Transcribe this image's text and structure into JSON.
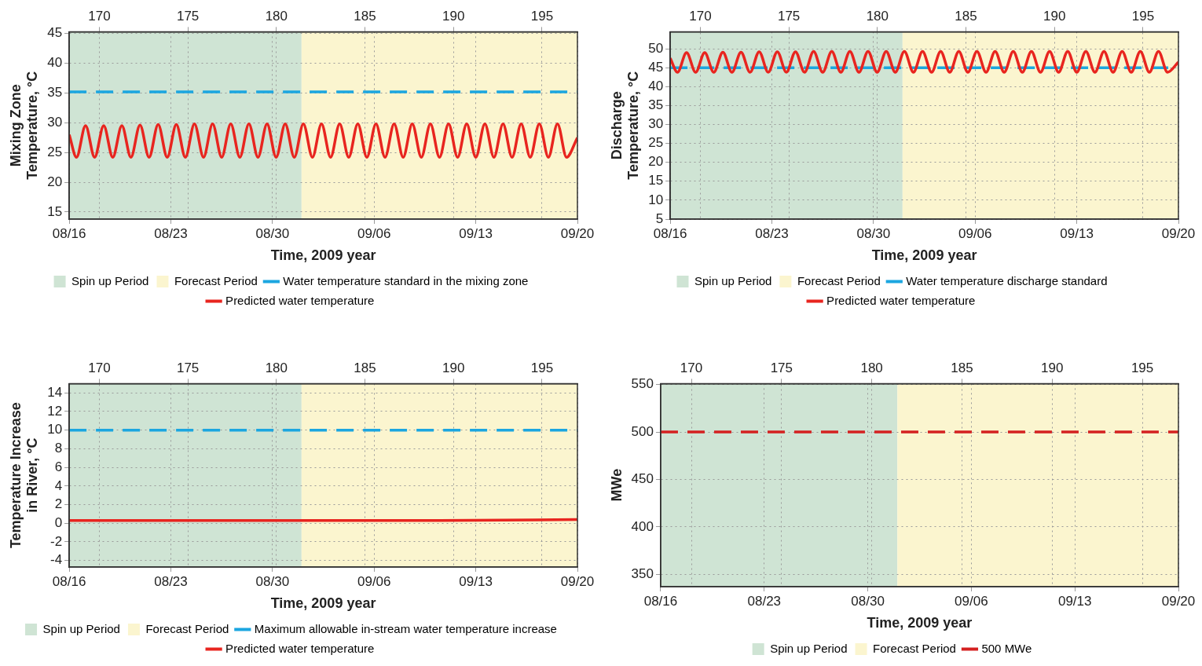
{
  "chart_data": [
    {
      "type": "line",
      "xlabel": "Time, 2009 year",
      "ylabel": "Mixing Zone Temperature, °C",
      "x": [
        "2009-08-16T00:00",
        "2009-08-16T12:00",
        "2009-08-17T03:00",
        "2009-08-17T18:00",
        "2009-08-18T09:00",
        "2009-08-19T00:00",
        "2009-08-19T15:00",
        "2009-08-20T06:00",
        "2009-08-20T21:00",
        "2009-08-21T12:00",
        "2009-08-22T03:00",
        "2009-08-22T18:00",
        "2009-08-23T09:00",
        "2009-08-24T00:00",
        "2009-08-24T15:00",
        "2009-08-25T06:00",
        "2009-08-25T21:00",
        "2009-08-26T12:00",
        "2009-08-27T03:00",
        "2009-08-27T18:00",
        "2009-08-28T09:00",
        "2009-08-29T00:00",
        "2009-08-29T15:00",
        "2009-08-30T06:00",
        "2009-08-30T21:00",
        "2009-08-31T12:00",
        "2009-09-01T03:00",
        "2009-09-01T18:00",
        "2009-09-02T09:00",
        "2009-09-03T00:00",
        "2009-09-03T15:00",
        "2009-09-04T06:00",
        "2009-09-04T21:00",
        "2009-09-05T12:00",
        "2009-09-06T03:00",
        "2009-09-06T18:00",
        "2009-09-07T09:00",
        "2009-09-08T00:00",
        "2009-09-08T15:00",
        "2009-09-09T06:00",
        "2009-09-09T21:00",
        "2009-09-10T12:00",
        "2009-09-11T03:00",
        "2009-09-11T18:00",
        "2009-09-12T09:00",
        "2009-09-13T00:00",
        "2009-09-13T15:00",
        "2009-09-14T06:00",
        "2009-09-14T21:00",
        "2009-09-15T12:00",
        "2009-09-16T03:00",
        "2009-09-16T18:00",
        "2009-09-17T09:00",
        "2009-09-18T00:00",
        "2009-09-18T15:00",
        "2009-09-19T06:00",
        "2009-09-20T00:00"
      ],
      "xlim": [
        "2009-08-16",
        "2009-09-20"
      ],
      "xticks": [
        {
          "value": "2009-08-16",
          "label": "08/16"
        },
        {
          "value": "2009-08-23",
          "label": "08/23"
        },
        {
          "value": "2009-08-30",
          "label": "08/30"
        },
        {
          "value": "2009-09-06",
          "label": "09/06"
        },
        {
          "value": "2009-09-13",
          "label": "09/13"
        },
        {
          "value": "2009-09-20",
          "label": "09/20"
        }
      ],
      "x2lim": [
        168.3,
        197
      ],
      "x2ticks": [
        170,
        175,
        180,
        185,
        190,
        195
      ],
      "ylim": [
        13.8,
        45.3
      ],
      "yticks": [
        15,
        20,
        25,
        30,
        35,
        40,
        45
      ],
      "series": [
        {
          "name": "Predicted water temperature",
          "color": "#e8251f",
          "values": [
            28,
            24.2,
            29.5,
            24.2,
            29.5,
            24.2,
            29.5,
            24.2,
            29.6,
            24.2,
            29.7,
            24.2,
            29.7,
            24.2,
            29.8,
            24.2,
            29.8,
            24.2,
            29.8,
            24.2,
            29.8,
            24.2,
            29.8,
            24.2,
            29.8,
            24.2,
            29.8,
            24.2,
            29.8,
            24.2,
            29.8,
            24.2,
            29.8,
            24.2,
            29.8,
            24.2,
            29.8,
            24.2,
            29.8,
            24.2,
            29.8,
            24.2,
            29.8,
            24.2,
            29.8,
            24.2,
            29.8,
            24.2,
            29.8,
            24.2,
            29.8,
            24.2,
            29.8,
            24.2,
            29.8,
            24.2,
            27.5
          ]
        }
      ],
      "ref_lines": [
        {
          "axis": "y",
          "value": 35.2,
          "label": "Water temperature standard in the mixing zone",
          "color": "#1ba6e0",
          "line_style": "dashed"
        }
      ],
      "bands": [
        {
          "axis": "x",
          "from": "2009-08-16",
          "to": "2009-09-01",
          "label": "Spin up Period",
          "color": "#cfe4d4"
        },
        {
          "axis": "x",
          "from": "2009-09-01",
          "to": "2009-09-20",
          "label": "Forecast Period",
          "color": "#fbf5cf"
        }
      ],
      "grid": true,
      "legend": "bottom"
    },
    {
      "type": "line",
      "xlabel": "Time, 2009 year",
      "ylabel": "Discharge Temperature, °C",
      "x": [
        "2009-08-16T00:00",
        "2009-08-16T12:00",
        "2009-08-17T03:00",
        "2009-08-17T18:00",
        "2009-08-18T09:00",
        "2009-08-19T00:00",
        "2009-08-19T15:00",
        "2009-08-20T06:00",
        "2009-08-20T21:00",
        "2009-08-21T12:00",
        "2009-08-22T03:00",
        "2009-08-22T18:00",
        "2009-08-23T09:00",
        "2009-08-24T00:00",
        "2009-08-24T15:00",
        "2009-08-25T06:00",
        "2009-08-25T21:00",
        "2009-08-26T12:00",
        "2009-08-27T03:00",
        "2009-08-27T18:00",
        "2009-08-28T09:00",
        "2009-08-29T00:00",
        "2009-08-29T15:00",
        "2009-08-30T06:00",
        "2009-08-30T21:00",
        "2009-08-31T12:00",
        "2009-09-01T03:00",
        "2009-09-01T18:00",
        "2009-09-02T09:00",
        "2009-09-03T00:00",
        "2009-09-03T15:00",
        "2009-09-04T06:00",
        "2009-09-04T21:00",
        "2009-09-05T12:00",
        "2009-09-06T03:00",
        "2009-09-06T18:00",
        "2009-09-07T09:00",
        "2009-09-08T00:00",
        "2009-09-08T15:00",
        "2009-09-09T06:00",
        "2009-09-09T21:00",
        "2009-09-10T12:00",
        "2009-09-11T03:00",
        "2009-09-11T18:00",
        "2009-09-12T09:00",
        "2009-09-13T00:00",
        "2009-09-13T15:00",
        "2009-09-14T06:00",
        "2009-09-14T21:00",
        "2009-09-15T12:00",
        "2009-09-16T03:00",
        "2009-09-16T18:00",
        "2009-09-17T09:00",
        "2009-09-18T00:00",
        "2009-09-18T15:00",
        "2009-09-19T06:00",
        "2009-09-20T00:00"
      ],
      "xlim": [
        "2009-08-16",
        "2009-09-20"
      ],
      "xticks": [
        {
          "value": "2009-08-16",
          "label": "08/16"
        },
        {
          "value": "2009-08-23",
          "label": "08/23"
        },
        {
          "value": "2009-08-30",
          "label": "08/30"
        },
        {
          "value": "2009-09-06",
          "label": "09/06"
        },
        {
          "value": "2009-09-13",
          "label": "09/13"
        },
        {
          "value": "2009-09-20",
          "label": "09/20"
        }
      ],
      "x2lim": [
        168.3,
        197
      ],
      "x2ticks": [
        170,
        175,
        180,
        185,
        190,
        195
      ],
      "ylim": [
        5,
        54.5
      ],
      "yticks": [
        5,
        10,
        15,
        20,
        25,
        30,
        35,
        40,
        45,
        50
      ],
      "series": [
        {
          "name": "Predicted water temperature",
          "color": "#e8251f",
          "values": [
            47.5,
            43.8,
            49,
            43.8,
            49,
            43.8,
            49.1,
            43.8,
            49.1,
            43.8,
            49.2,
            43.8,
            49.2,
            43.8,
            49.2,
            43.8,
            49.3,
            43.8,
            49.3,
            43.8,
            49.3,
            43.8,
            49.3,
            43.8,
            49.3,
            43.8,
            49.3,
            43.8,
            49.3,
            43.8,
            49.3,
            43.8,
            49.3,
            43.8,
            49.3,
            43.8,
            49.3,
            43.8,
            49.3,
            43.8,
            49.3,
            43.8,
            49.3,
            43.8,
            49.3,
            43.8,
            49.3,
            43.8,
            49.3,
            43.8,
            49.3,
            43.8,
            49.3,
            43.8,
            49.3,
            43.8,
            46.5
          ]
        }
      ],
      "ref_lines": [
        {
          "axis": "y",
          "value": 45,
          "label": "Water temperature discharge standard",
          "color": "#1ba6e0",
          "line_style": "dashed"
        }
      ],
      "bands": [
        {
          "axis": "x",
          "from": "2009-08-16",
          "to": "2009-09-01",
          "label": "Spin up Period",
          "color": "#cfe4d4"
        },
        {
          "axis": "x",
          "from": "2009-09-01",
          "to": "2009-09-20",
          "label": "Forecast Period",
          "color": "#fbf5cf"
        }
      ],
      "grid": true,
      "legend": "bottom"
    },
    {
      "type": "line",
      "xlabel": "Time, 2009 year",
      "ylabel": "Temperature Increase in River, °C",
      "x": [
        "2009-08-16",
        "2009-08-30",
        "2009-09-10",
        "2009-09-20"
      ],
      "xlim": [
        "2009-08-16",
        "2009-09-20"
      ],
      "xticks": [
        {
          "value": "2009-08-16",
          "label": "08/16"
        },
        {
          "value": "2009-08-23",
          "label": "08/23"
        },
        {
          "value": "2009-08-30",
          "label": "08/30"
        },
        {
          "value": "2009-09-06",
          "label": "09/06"
        },
        {
          "value": "2009-09-13",
          "label": "09/13"
        },
        {
          "value": "2009-09-20",
          "label": "09/20"
        }
      ],
      "x2lim": [
        168.3,
        197
      ],
      "x2ticks": [
        170,
        175,
        180,
        185,
        190,
        195
      ],
      "ylim": [
        -4.7,
        15
      ],
      "yticks": [
        -4,
        -2,
        0,
        2,
        4,
        6,
        8,
        10,
        12,
        14
      ],
      "series": [
        {
          "name": "Predicted water temperature",
          "color": "#e8251f",
          "values": [
            0.3,
            0.3,
            0.3,
            0.4
          ]
        }
      ],
      "ref_lines": [
        {
          "axis": "y",
          "value": 10,
          "label": "Maximum allowable in-stream water temperature increase",
          "color": "#1ba6e0",
          "line_style": "dashed"
        }
      ],
      "bands": [
        {
          "axis": "x",
          "from": "2009-08-16",
          "to": "2009-09-01",
          "label": "Spin up Period",
          "color": "#cfe4d4"
        },
        {
          "axis": "x",
          "from": "2009-09-01",
          "to": "2009-09-20",
          "label": "Forecast Period",
          "color": "#fbf5cf"
        }
      ],
      "grid": true,
      "legend": "bottom"
    },
    {
      "type": "line",
      "xlabel": "Time, 2009 year",
      "ylabel": "MWe",
      "x": [
        "2009-08-16",
        "2009-09-20"
      ],
      "xlim": [
        "2009-08-16",
        "2009-09-20"
      ],
      "xticks": [
        {
          "value": "2009-08-16",
          "label": "08/16"
        },
        {
          "value": "2009-08-23",
          "label": "08/23"
        },
        {
          "value": "2009-08-30",
          "label": "08/30"
        },
        {
          "value": "2009-09-06",
          "label": "09/06"
        },
        {
          "value": "2009-09-13",
          "label": "09/13"
        },
        {
          "value": "2009-09-20",
          "label": "09/20"
        }
      ],
      "x2lim": [
        168.3,
        197
      ],
      "x2ticks": [
        170,
        175,
        180,
        185,
        190,
        195
      ],
      "ylim": [
        337,
        551
      ],
      "yticks": [
        350,
        400,
        450,
        500,
        550
      ],
      "series": [
        {
          "name": "500 MWe",
          "color": "#d42020",
          "values": [
            500,
            500
          ],
          "line_style": "dashed"
        }
      ],
      "bands": [
        {
          "axis": "x",
          "from": "2009-08-16",
          "to": "2009-09-01",
          "label": "Spin up Period",
          "color": "#cfe4d4"
        },
        {
          "axis": "x",
          "from": "2009-09-01",
          "to": "2009-09-20",
          "label": "Forecast Period",
          "color": "#fbf5cf"
        }
      ],
      "grid": true,
      "legend": "bottom"
    }
  ]
}
